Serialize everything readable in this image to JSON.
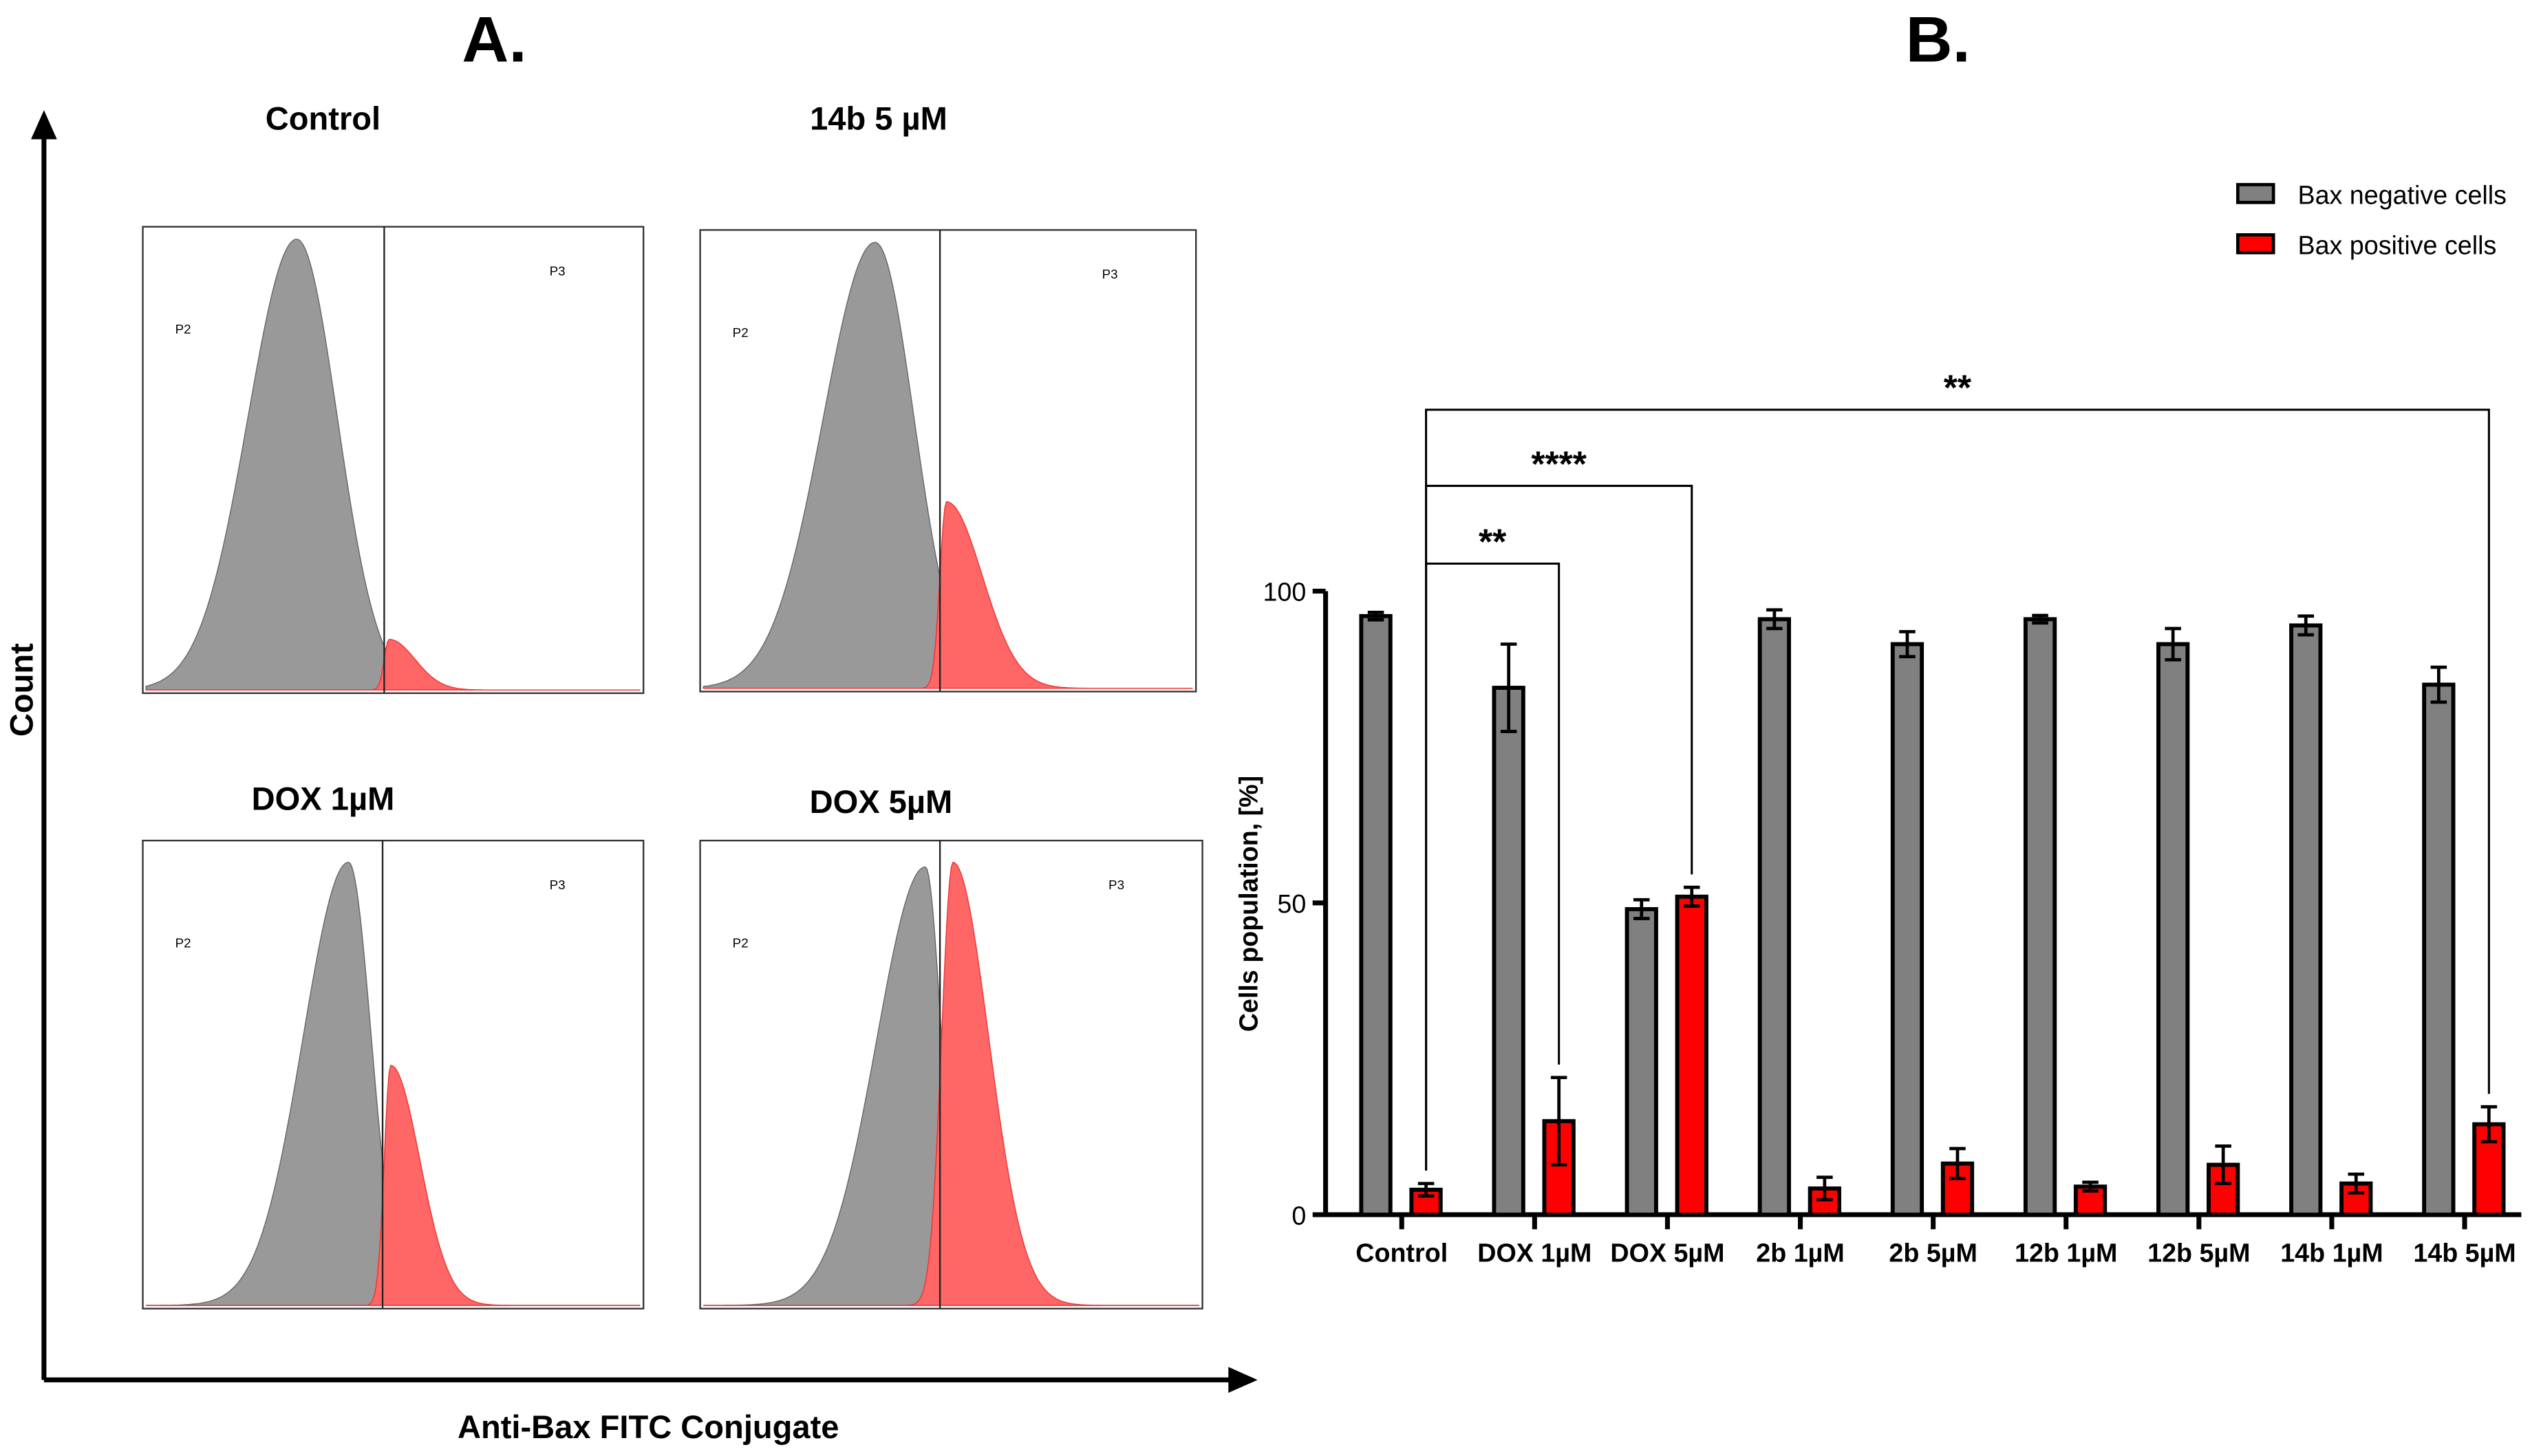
{
  "panel_a": {
    "label": "A.",
    "y_axis_label": "Count",
    "x_axis_label": "Anti-Bax FITC Conjugate",
    "histograms": [
      {
        "title": "Control",
        "gate_left": "P2",
        "gate_right": "P3"
      },
      {
        "title": "14b 5 µM",
        "gate_left": "P2",
        "gate_right": "P3"
      },
      {
        "title": "DOX 1µM",
        "gate_left": "P2",
        "gate_right": "P3"
      },
      {
        "title": "DOX 5µM",
        "gate_left": "P2",
        "gate_right": "P3"
      }
    ]
  },
  "panel_b": {
    "label": "B."
  },
  "colors": {
    "negative": "#808080",
    "positive": "#ff0000",
    "hist_gray": "#999999",
    "hist_red": "#ff6666"
  },
  "chart_data": {
    "type": "bar",
    "title": "",
    "xlabel": "",
    "ylabel": "Cells population, [%]",
    "ylim": [
      0,
      100
    ],
    "yticks": [
      "0",
      "50",
      "100"
    ],
    "legend_position": "top-right",
    "categories": [
      "Control",
      "DOX 1µM",
      "DOX 5µM",
      "2b 1µM",
      "2b 5µM",
      "12b 1µM",
      "12b 5µM",
      "14b 1µM",
      "14b 5µM"
    ],
    "series": [
      {
        "name": "Bax negative cells",
        "values": [
          96,
          84.5,
          49,
          95.5,
          91.5,
          95.5,
          91.5,
          94.5,
          85
        ],
        "errors": [
          0.6,
          7,
          1.5,
          1.5,
          2,
          0.6,
          2.5,
          1.5,
          2.8
        ]
      },
      {
        "name": "Bax positive cells",
        "values": [
          4,
          15,
          51,
          4.2,
          8.2,
          4.5,
          8,
          5,
          14.5
        ],
        "errors": [
          1,
          7,
          1.5,
          1.8,
          2.4,
          0.7,
          3,
          1.5,
          2.8
        ]
      }
    ],
    "significance": [
      {
        "from": "Control",
        "to": "DOX 1µM",
        "label": "**"
      },
      {
        "from": "Control",
        "to": "DOX 5µM",
        "label": "****"
      },
      {
        "from": "Control",
        "to": "14b 5µM",
        "label": "**"
      }
    ]
  }
}
